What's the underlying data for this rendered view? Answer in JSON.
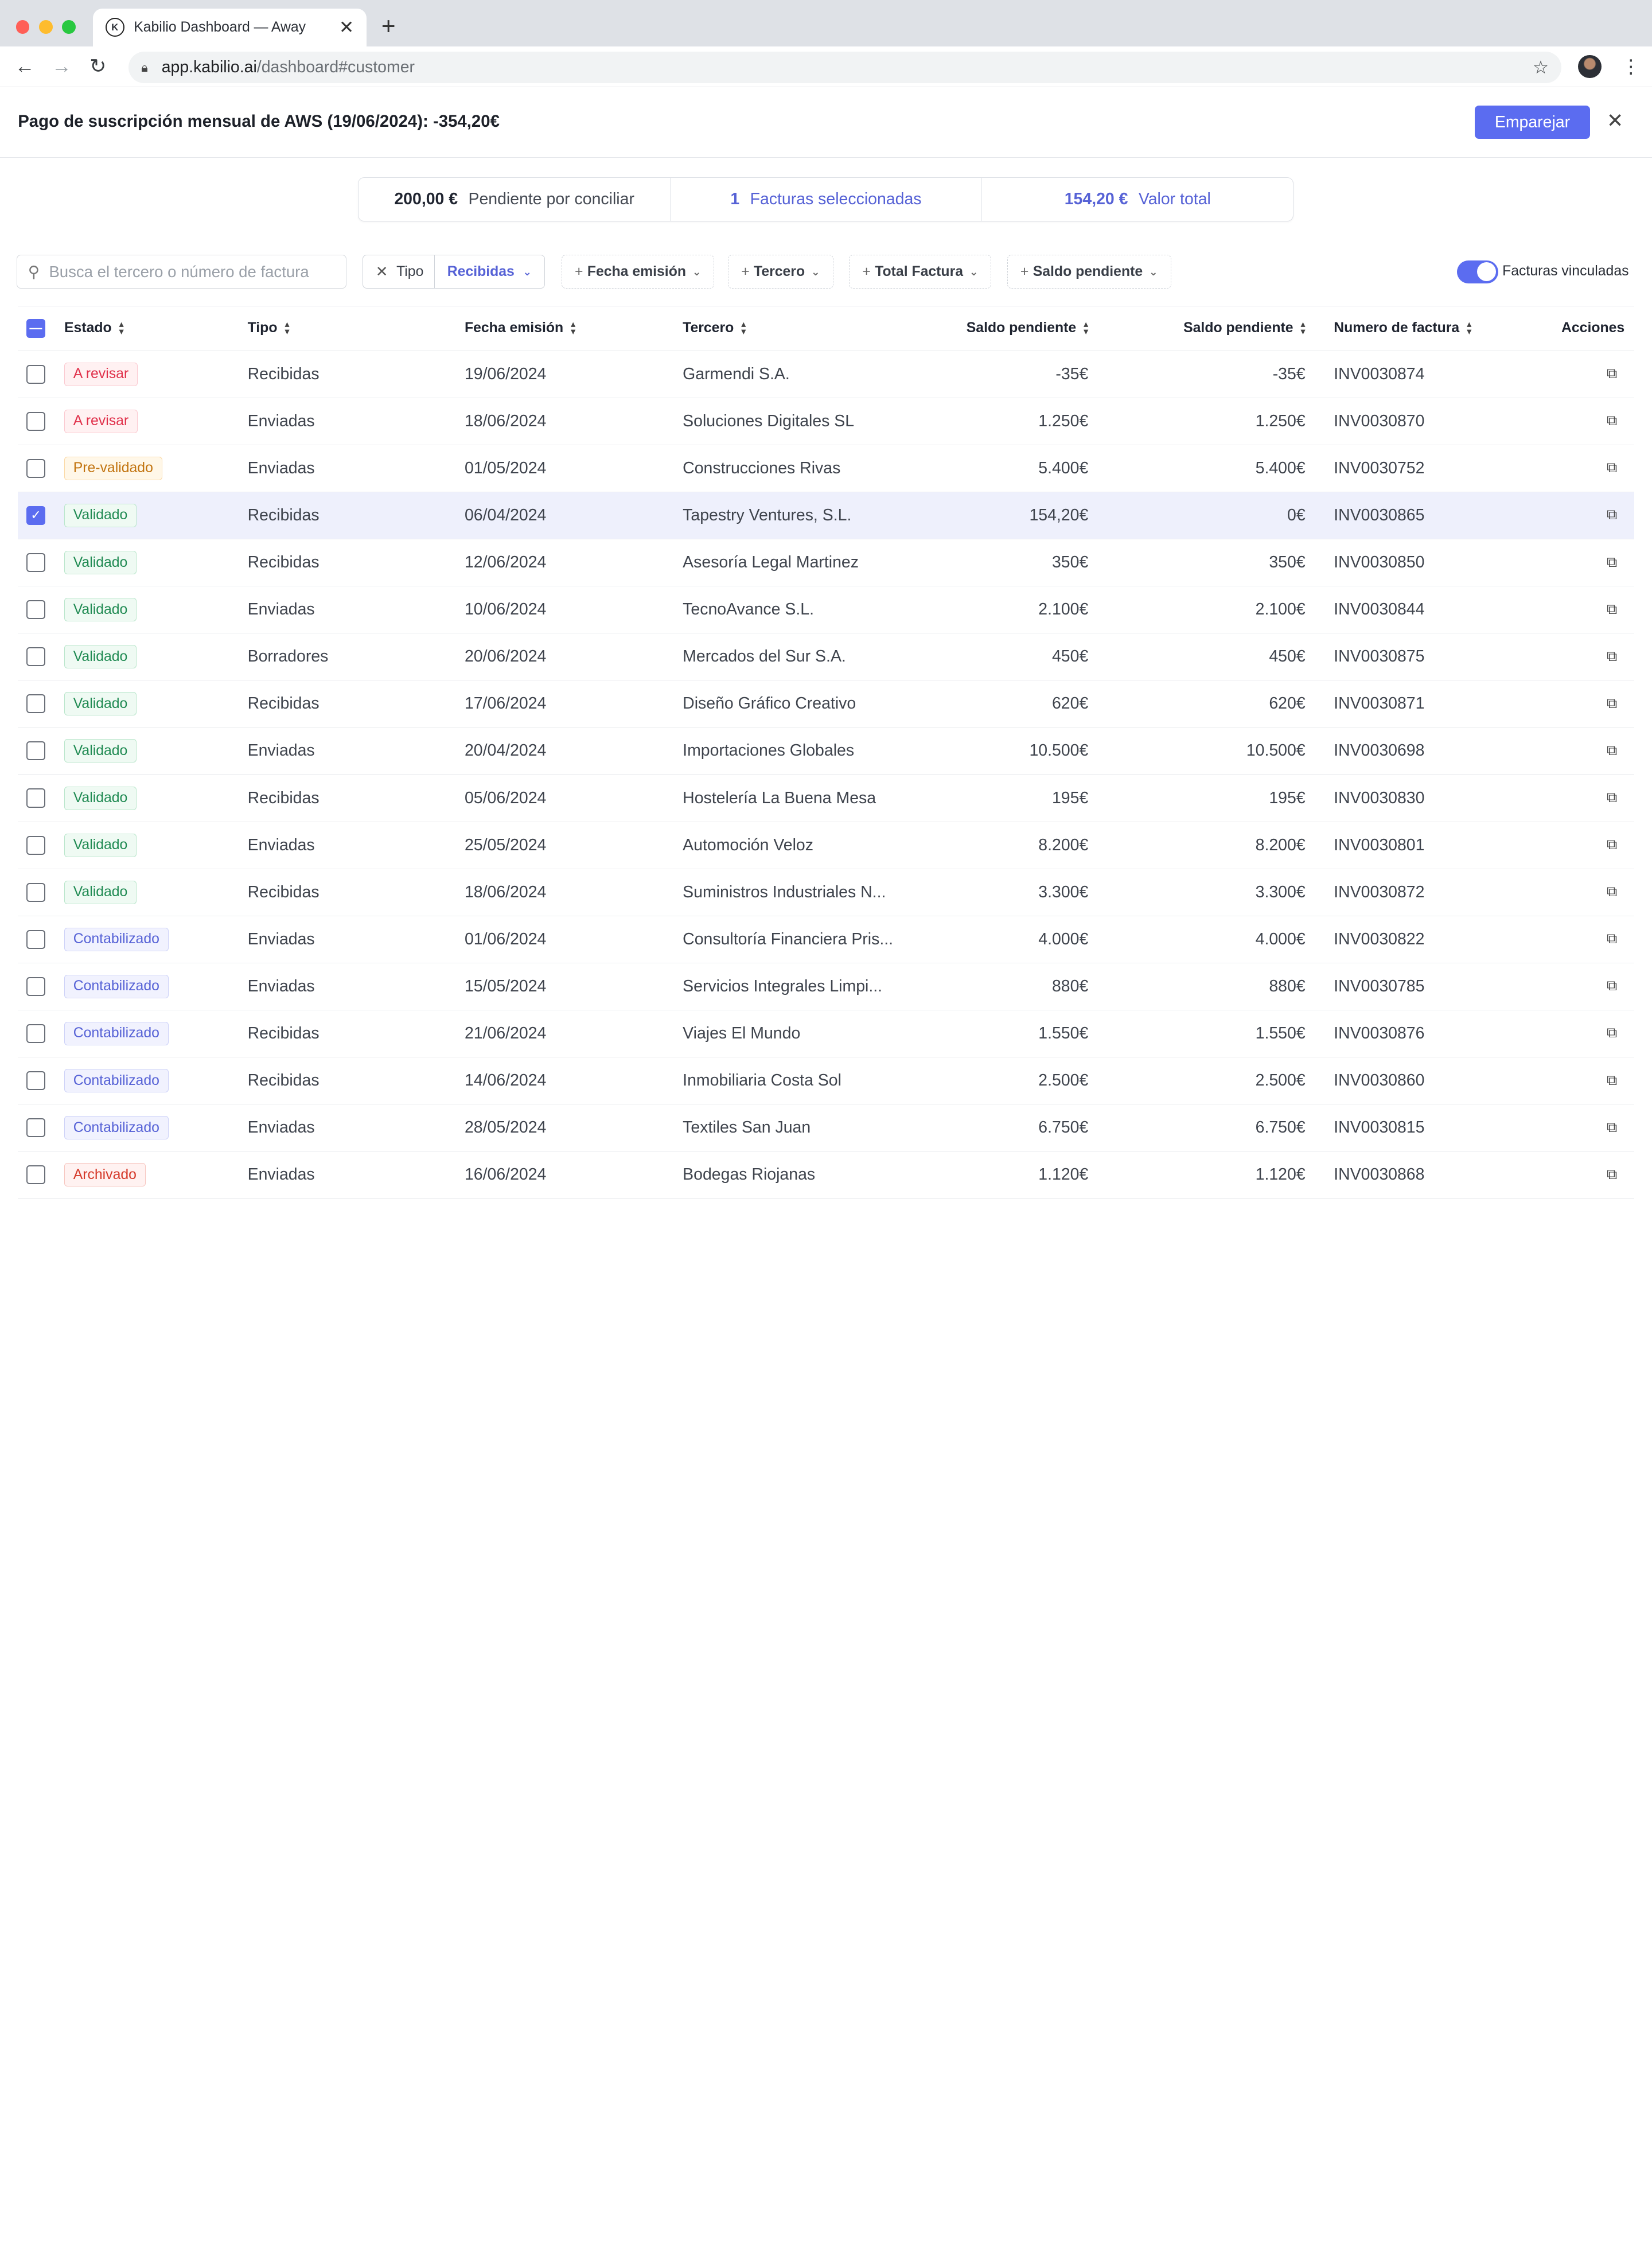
{
  "browser": {
    "tab_title": "Kabilio Dashboard — Away",
    "url_host": "app.kabilio.ai",
    "url_path": "/dashboard#customer",
    "traffic_lights": [
      "#ff5f57",
      "#febc2e",
      "#28c840"
    ]
  },
  "header": {
    "title": "Pago de suscripción mensual de AWS (19/06/2024): -354,20€",
    "match_label": "Emparejar",
    "accent": "#5b6cf0"
  },
  "summary": {
    "pending_amount": "200,00 €",
    "pending_label": "Pendiente por conciliar",
    "selected_count": "1",
    "selected_label": "Facturas seleccionadas",
    "total_amount": "154,20 €",
    "total_label": "Valor total"
  },
  "filters": {
    "search_placeholder": "Busca el tercero o número de factura",
    "tipo_label": "Tipo",
    "tipo_value": "Recibidas",
    "chips": [
      "Fecha emisión",
      "Tercero",
      "Total Factura",
      "Saldo pendiente"
    ],
    "toggle_label": "Facturas vinculadas",
    "toggle_on": true
  },
  "table": {
    "columns": [
      "Estado",
      "Tipo",
      "Fecha emisión",
      "Tercero",
      "Saldo pendiente",
      "Saldo pendiente",
      "Numero de factura",
      "Acciones"
    ],
    "rows": [
      {
        "estado": "A revisar",
        "tipo": "Recibidas",
        "fecha": "19/06/2024",
        "tercero": "Garmendi S.A.",
        "saldo1": "-35€",
        "saldo2": "-35€",
        "factura": "INV0030874",
        "checked": false
      },
      {
        "estado": "A revisar",
        "tipo": "Enviadas",
        "fecha": "18/06/2024",
        "tercero": "Soluciones Digitales SL",
        "saldo1": "1.250€",
        "saldo2": "1.250€",
        "factura": "INV0030870",
        "checked": false
      },
      {
        "estado": "Pre-validado",
        "tipo": "Enviadas",
        "fecha": "01/05/2024",
        "tercero": "Construcciones Rivas",
        "saldo1": "5.400€",
        "saldo2": "5.400€",
        "factura": "INV0030752",
        "checked": false
      },
      {
        "estado": "Validado",
        "tipo": "Recibidas",
        "fecha": "06/04/2024",
        "tercero": "Tapestry Ventures, S.L.",
        "saldo1": "154,20€",
        "saldo2": "0€",
        "factura": "INV0030865",
        "checked": true
      },
      {
        "estado": "Validado",
        "tipo": "Recibidas",
        "fecha": "12/06/2024",
        "tercero": "Asesoría Legal Martinez",
        "saldo1": "350€",
        "saldo2": "350€",
        "factura": "INV0030850",
        "checked": false
      },
      {
        "estado": "Validado",
        "tipo": "Enviadas",
        "fecha": "10/06/2024",
        "tercero": "TecnoAvance S.L.",
        "saldo1": "2.100€",
        "saldo2": "2.100€",
        "factura": "INV0030844",
        "checked": false
      },
      {
        "estado": "Validado",
        "tipo": "Borradores",
        "fecha": "20/06/2024",
        "tercero": "Mercados del Sur S.A.",
        "saldo1": "450€",
        "saldo2": "450€",
        "factura": "INV0030875",
        "checked": false
      },
      {
        "estado": "Validado",
        "tipo": "Recibidas",
        "fecha": "17/06/2024",
        "tercero": "Diseño Gráfico Creativo",
        "saldo1": "620€",
        "saldo2": "620€",
        "factura": "INV0030871",
        "checked": false
      },
      {
        "estado": "Validado",
        "tipo": "Enviadas",
        "fecha": "20/04/2024",
        "tercero": "Importaciones Globales",
        "saldo1": "10.500€",
        "saldo2": "10.500€",
        "factura": "INV0030698",
        "checked": false
      },
      {
        "estado": "Validado",
        "tipo": "Recibidas",
        "fecha": "05/06/2024",
        "tercero": "Hostelería La Buena Mesa",
        "saldo1": "195€",
        "saldo2": "195€",
        "factura": "INV0030830",
        "checked": false
      },
      {
        "estado": "Validado",
        "tipo": "Enviadas",
        "fecha": "25/05/2024",
        "tercero": "Automoción Veloz",
        "saldo1": "8.200€",
        "saldo2": "8.200€",
        "factura": "INV0030801",
        "checked": false
      },
      {
        "estado": "Validado",
        "tipo": "Recibidas",
        "fecha": "18/06/2024",
        "tercero": "Suministros Industriales N...",
        "saldo1": "3.300€",
        "saldo2": "3.300€",
        "factura": "INV0030872",
        "checked": false
      },
      {
        "estado": "Contabilizado",
        "tipo": "Enviadas",
        "fecha": "01/06/2024",
        "tercero": "Consultoría Financiera Pris...",
        "saldo1": "4.000€",
        "saldo2": "4.000€",
        "factura": "INV0030822",
        "checked": false
      },
      {
        "estado": "Contabilizado",
        "tipo": "Enviadas",
        "fecha": "15/05/2024",
        "tercero": "Servicios Integrales Limpi...",
        "saldo1": "880€",
        "saldo2": "880€",
        "factura": "INV0030785",
        "checked": false
      },
      {
        "estado": "Contabilizado",
        "tipo": "Recibidas",
        "fecha": "21/06/2024",
        "tercero": "Viajes El Mundo",
        "saldo1": "1.550€",
        "saldo2": "1.550€",
        "factura": "INV0030876",
        "checked": false
      },
      {
        "estado": "Contabilizado",
        "tipo": "Recibidas",
        "fecha": "14/06/2024",
        "tercero": "Inmobiliaria Costa Sol",
        "saldo1": "2.500€",
        "saldo2": "2.500€",
        "factura": "INV0030860",
        "checked": false
      },
      {
        "estado": "Contabilizado",
        "tipo": "Enviadas",
        "fecha": "28/05/2024",
        "tercero": "Textiles San Juan",
        "saldo1": "6.750€",
        "saldo2": "6.750€",
        "factura": "INV0030815",
        "checked": false
      },
      {
        "estado": "Archivado",
        "tipo": "Enviadas",
        "fecha": "16/06/2024",
        "tercero": "Bodegas Riojanas",
        "saldo1": "1.120€",
        "saldo2": "1.120€",
        "factura": "INV0030868",
        "checked": false
      }
    ]
  }
}
